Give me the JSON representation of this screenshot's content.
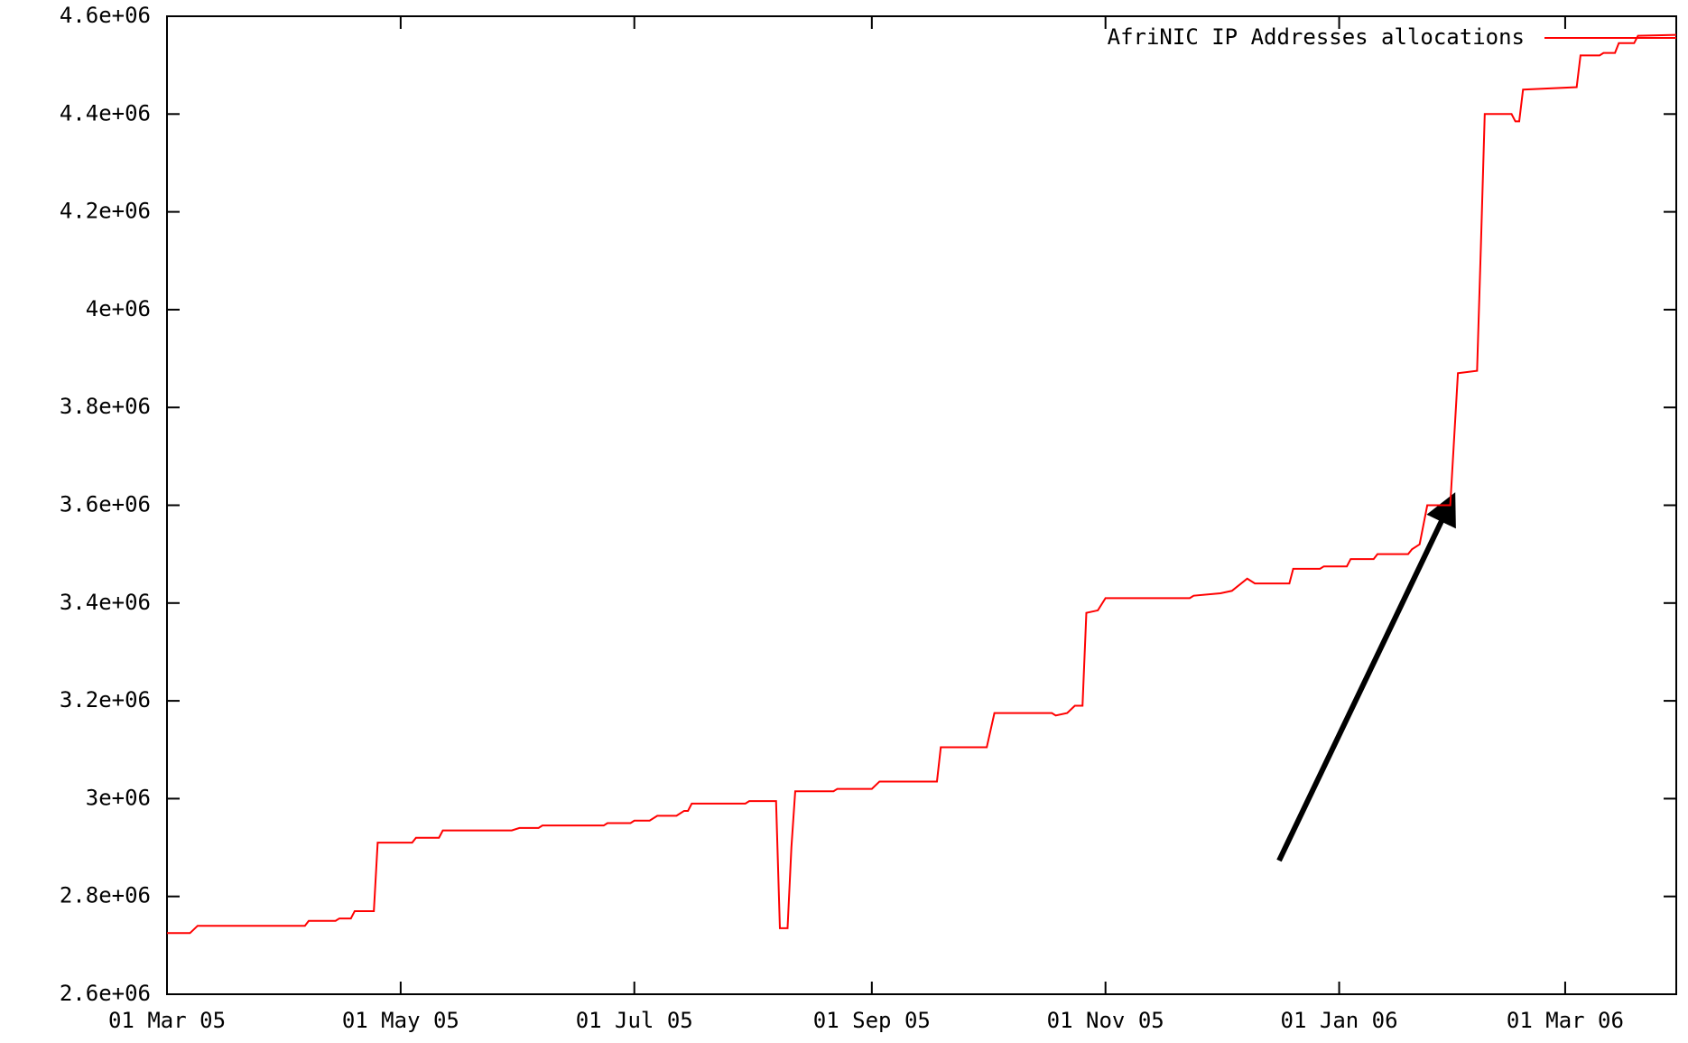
{
  "chart_data": {
    "type": "line",
    "x": [
      "2005-03-01",
      "2005-03-07",
      "2005-03-09",
      "2005-04-06",
      "2005-04-07",
      "2005-04-14",
      "2005-04-15",
      "2005-04-18",
      "2005-04-19",
      "2005-04-24",
      "2005-04-25",
      "2005-05-04",
      "2005-05-05",
      "2005-05-11",
      "2005-05-12",
      "2005-05-30",
      "2005-06-01",
      "2005-06-06",
      "2005-06-07",
      "2005-06-23",
      "2005-06-24",
      "2005-06-30",
      "2005-07-01",
      "2005-07-05",
      "2005-07-07",
      "2005-07-12",
      "2005-07-14",
      "2005-07-15",
      "2005-07-16",
      "2005-07-30",
      "2005-07-31",
      "2005-08-07",
      "2005-08-08",
      "2005-08-10",
      "2005-08-11",
      "2005-08-12",
      "2005-08-22",
      "2005-08-23",
      "2005-09-01",
      "2005-09-03",
      "2005-09-18",
      "2005-09-19",
      "2005-10-01",
      "2005-10-03",
      "2005-10-18",
      "2005-10-19",
      "2005-10-22",
      "2005-10-24",
      "2005-10-26",
      "2005-10-27",
      "2005-10-30",
      "2005-11-01",
      "2005-11-23",
      "2005-11-24",
      "2005-12-01",
      "2005-12-04",
      "2005-12-08",
      "2005-12-10",
      "2005-12-19",
      "2005-12-20",
      "2005-12-27",
      "2005-12-28",
      "2006-01-03",
      "2006-01-04",
      "2006-01-10",
      "2006-01-11",
      "2006-01-19",
      "2006-01-20",
      "2006-01-22",
      "2006-01-24",
      "2006-01-30",
      "2006-02-01",
      "2006-02-06",
      "2006-02-07",
      "2006-02-08",
      "2006-02-15",
      "2006-02-16",
      "2006-02-17",
      "2006-02-18",
      "2006-03-04",
      "2006-03-05",
      "2006-03-10",
      "2006-03-11",
      "2006-03-14",
      "2006-03-15",
      "2006-03-19",
      "2006-03-20",
      "2006-03-30"
    ],
    "series": [
      {
        "name": "AfriNIC IP Addresses allocations",
        "color": "#ff0000",
        "values": [
          2725000,
          2725000,
          2740000,
          2740000,
          2750000,
          2750000,
          2755000,
          2755000,
          2770000,
          2770000,
          2910000,
          2910000,
          2920000,
          2920000,
          2935000,
          2935000,
          2940000,
          2940000,
          2945000,
          2945000,
          2950000,
          2950000,
          2955000,
          2955000,
          2965000,
          2965000,
          2975000,
          2975000,
          2990000,
          2990000,
          2995000,
          2995000,
          2735000,
          2735000,
          2900000,
          3015000,
          3015000,
          3020000,
          3020000,
          3035000,
          3035000,
          3105000,
          3105000,
          3175000,
          3175000,
          3170000,
          3175000,
          3190000,
          3190000,
          3380000,
          3385000,
          3410000,
          3410000,
          3415000,
          3420000,
          3425000,
          3450000,
          3440000,
          3440000,
          3470000,
          3470000,
          3475000,
          3475000,
          3490000,
          3490000,
          3500000,
          3500000,
          3510000,
          3520000,
          3600000,
          3600000,
          3870000,
          3875000,
          4130000,
          4400000,
          4400000,
          4385000,
          4385000,
          4450000,
          4455000,
          4520000,
          4520000,
          4525000,
          4525000,
          4545000,
          4545000,
          4560000,
          4562000
        ]
      }
    ],
    "xlim": [
      "2005-03-01",
      "2006-03-30"
    ],
    "xticks": [
      {
        "value": "2005-03-01",
        "label": "01 Mar 05"
      },
      {
        "value": "2005-05-01",
        "label": "01 May 05"
      },
      {
        "value": "2005-07-01",
        "label": "01 Jul 05"
      },
      {
        "value": "2005-09-01",
        "label": "01 Sep 05"
      },
      {
        "value": "2005-11-01",
        "label": "01 Nov 05"
      },
      {
        "value": "2006-01-01",
        "label": "01 Jan 06"
      },
      {
        "value": "2006-03-01",
        "label": "01 Mar 06"
      }
    ],
    "ylim": [
      2600000,
      4600000
    ],
    "yticks": [
      {
        "value": 2600000,
        "label": "2.6e+06"
      },
      {
        "value": 2800000,
        "label": "2.8e+06"
      },
      {
        "value": 3000000,
        "label": "3e+06"
      },
      {
        "value": 3200000,
        "label": "3.2e+06"
      },
      {
        "value": 3400000,
        "label": "3.4e+06"
      },
      {
        "value": 3600000,
        "label": "3.6e+06"
      },
      {
        "value": 3800000,
        "label": "3.8e+06"
      },
      {
        "value": 4000000,
        "label": "4e+06"
      },
      {
        "value": 4200000,
        "label": "4.2e+06"
      },
      {
        "value": 4400000,
        "label": "4.4e+06"
      },
      {
        "value": 4600000,
        "label": "4.6e+06"
      }
    ],
    "legend": "top-right",
    "grid": false
  }
}
